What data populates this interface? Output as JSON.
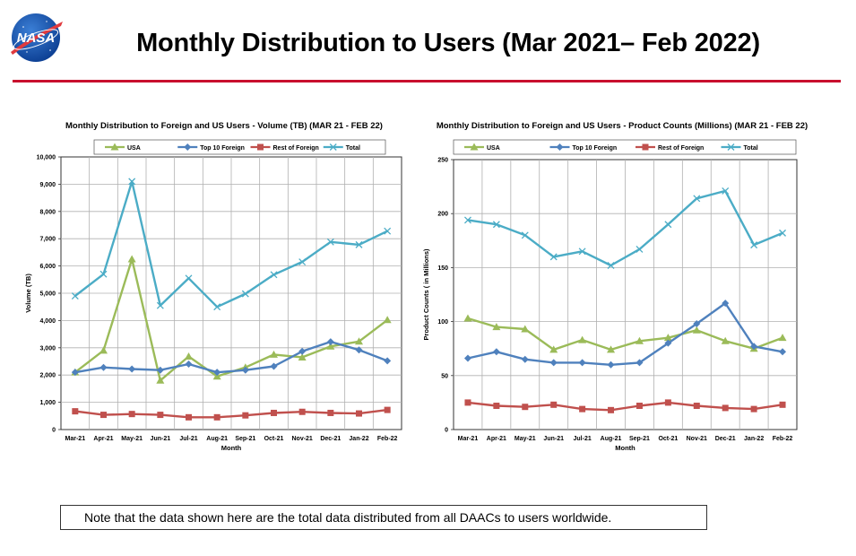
{
  "header": {
    "title": "Monthly Distribution to Users (Mar 2021– Feb 2022)",
    "logo_text": "NASA"
  },
  "note": "Note that the data shown here are the total data distributed from all DAACs to users worldwide.",
  "colors": {
    "usa": "#9bbb59",
    "top10": "#4f81bd",
    "rest": "#c0504d",
    "total": "#4bacc6",
    "rule": "#c8102e"
  },
  "chart_data": [
    {
      "type": "line",
      "title": "Monthly Distribution to Foreign and US Users - Volume  (TB) (MAR 21 - FEB 22)",
      "xlabel": "Month",
      "ylabel": "Volume (TB)",
      "ylim": [
        0,
        10000
      ],
      "yticks": [
        0,
        1000,
        2000,
        3000,
        4000,
        5000,
        6000,
        7000,
        8000,
        9000,
        10000
      ],
      "ytick_labels": [
        "0",
        "1,000",
        "2,000",
        "3,000",
        "4,000",
        "5,000",
        "6,000",
        "7,000",
        "8,000",
        "9,000",
        "10,000"
      ],
      "grid": true,
      "legend": "top",
      "categories": [
        "Mar-21",
        "Apr-21",
        "May-21",
        "Jun-21",
        "Jul-21",
        "Aug-21",
        "Sep-21",
        "Oct-21",
        "Nov-21",
        "Dec-21",
        "Jan-22",
        "Feb-22"
      ],
      "series": [
        {
          "name": "USA",
          "key": "usa",
          "marker": "triangle",
          "values": [
            2100,
            2900,
            6250,
            1800,
            2680,
            1950,
            2280,
            2750,
            2650,
            3050,
            3230,
            4020
          ]
        },
        {
          "name": "Top 10 Foreign",
          "key": "top10",
          "marker": "diamond",
          "values": [
            2100,
            2280,
            2220,
            2180,
            2400,
            2100,
            2180,
            2320,
            2870,
            3220,
            2920,
            2520
          ]
        },
        {
          "name": "Rest of Foreign",
          "key": "rest",
          "marker": "square",
          "values": [
            670,
            540,
            570,
            540,
            450,
            450,
            520,
            610,
            650,
            610,
            590,
            720
          ]
        },
        {
          "name": "Total",
          "key": "total",
          "marker": "x",
          "values": [
            4900,
            5700,
            9100,
            4550,
            5550,
            4500,
            4980,
            5680,
            6150,
            6880,
            6780,
            7280
          ]
        }
      ]
    },
    {
      "type": "line",
      "title": "Monthly Distribution to Foreign and US Users - Product Counts (Millions) (MAR 21 - FEB 22)",
      "xlabel": "Month",
      "ylabel": "Product Counts ( in Millions)",
      "ylim": [
        0,
        250
      ],
      "yticks": [
        0,
        50,
        100,
        150,
        200,
        250
      ],
      "ytick_labels": [
        "0",
        "50",
        "100",
        "150",
        "200",
        "250"
      ],
      "grid": true,
      "legend": "top",
      "categories": [
        "Mar-21",
        "Apr-21",
        "May-21",
        "Jun-21",
        "Jul-21",
        "Aug-21",
        "Sep-21",
        "Oct-21",
        "Nov-21",
        "Dec-21",
        "Jan-22",
        "Feb-22"
      ],
      "series": [
        {
          "name": "USA",
          "key": "usa",
          "marker": "triangle",
          "values": [
            103,
            95,
            93,
            74,
            83,
            74,
            82,
            85,
            92,
            82,
            75,
            85
          ]
        },
        {
          "name": "Top 10 Foreign",
          "key": "top10",
          "marker": "diamond",
          "values": [
            66,
            72,
            65,
            62,
            62,
            60,
            62,
            80,
            98,
            117,
            77,
            72
          ]
        },
        {
          "name": "Rest of Foreign",
          "key": "rest",
          "marker": "square",
          "values": [
            25,
            22,
            21,
            23,
            19,
            18,
            22,
            25,
            22,
            20,
            19,
            23
          ]
        },
        {
          "name": "Total",
          "key": "total",
          "marker": "x",
          "values": [
            194,
            190,
            180,
            160,
            165,
            152,
            167,
            190,
            214,
            221,
            171,
            182
          ]
        }
      ]
    }
  ]
}
